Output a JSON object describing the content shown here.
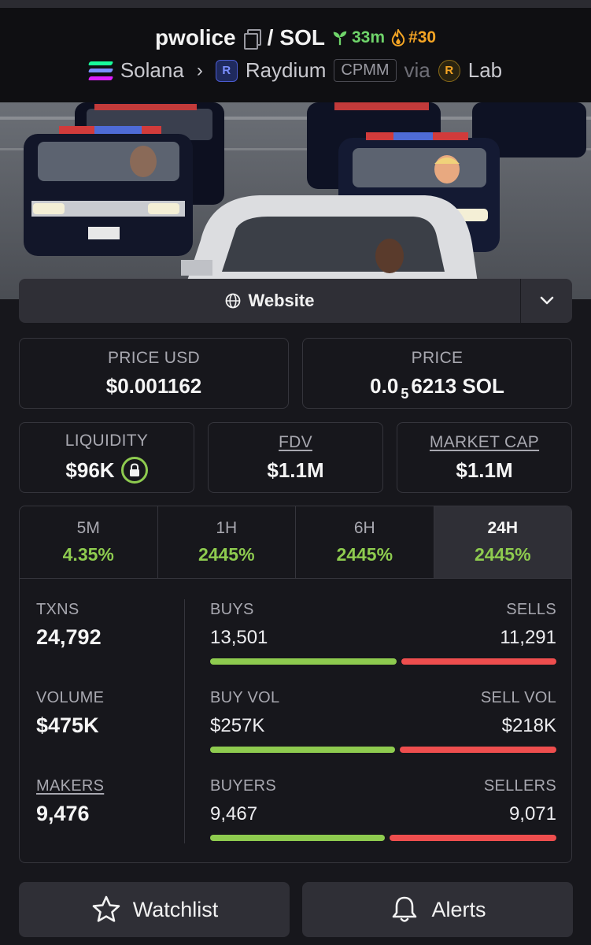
{
  "header": {
    "token_symbol": "pwolice",
    "separator": "/",
    "quote_symbol": "SOL",
    "age": "33m",
    "rank": "#30",
    "chain": "Solana",
    "dex": "Raydium",
    "pool_type": "CPMM",
    "via_label": "via",
    "launchpad": "Lab"
  },
  "website": {
    "label": "Website"
  },
  "price": {
    "usd_label": "PRICE USD",
    "usd_value": "$0.001162",
    "native_label": "PRICE",
    "native_prefix": "0.0",
    "native_zeros": "5",
    "native_suffix": "6213 SOL"
  },
  "market": {
    "liquidity_label": "LIQUIDITY",
    "liquidity_value": "$96K",
    "fdv_label": "FDV",
    "fdv_value": "$1.1M",
    "mcap_label": "MARKET CAP",
    "mcap_value": "$1.1M"
  },
  "tabs": [
    {
      "label": "5M",
      "value": "4.35%"
    },
    {
      "label": "1H",
      "value": "2445%"
    },
    {
      "label": "6H",
      "value": "2445%"
    },
    {
      "label": "24H",
      "value": "2445%"
    }
  ],
  "stats": {
    "txns_label": "TXNS",
    "txns_value": "24,792",
    "volume_label": "VOLUME",
    "volume_value": "$475K",
    "makers_label": "MAKERS",
    "makers_value": "9,476",
    "buys_label": "BUYS",
    "buys_value": "13,501",
    "sells_label": "SELLS",
    "sells_value": "11,291",
    "buyvol_label": "BUY VOL",
    "buyvol_value": "$257K",
    "sellvol_label": "SELL VOL",
    "sellvol_value": "$218K",
    "buyers_label": "BUYERS",
    "buyers_value": "9,467",
    "sellers_label": "SELLERS",
    "sellers_value": "9,071",
    "buys_ratio": 0.545,
    "buyvol_ratio": 0.541,
    "buyers_ratio": 0.511
  },
  "actions": {
    "watchlist_label": "Watchlist",
    "alerts_label": "Alerts"
  },
  "colors": {
    "positive": "#8ecb4f",
    "negative": "#ee4e4e",
    "age": "#6fd46a",
    "rank": "#f5a524"
  }
}
